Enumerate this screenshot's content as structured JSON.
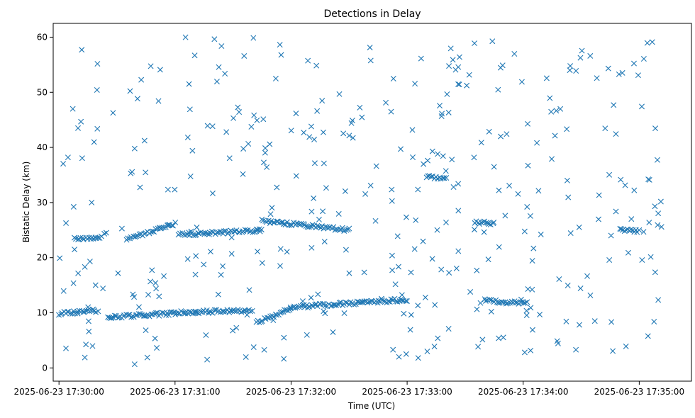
{
  "chart_data": {
    "type": "scatter",
    "title": "Detections in Delay",
    "xlabel": "Time (UTC)",
    "ylabel": "Bistatic Delay (km)",
    "marker": "x",
    "color": "#1f77b4",
    "grid": false,
    "x_unit": "UTC time",
    "xlim": [
      "2025-06-23 17:29:57",
      "2025-06-23 17:35:27"
    ],
    "ylim": [
      -2.4,
      62.5
    ],
    "x_ticks": [
      "2025-06-23 17:30:00",
      "2025-06-23 17:31:00",
      "2025-06-23 17:32:00",
      "2025-06-23 17:33:00",
      "2025-06-23 17:34:00",
      "2025-06-23 17:35:00"
    ],
    "y_ticks": [
      0,
      10,
      20,
      30,
      40,
      50,
      60
    ],
    "track_lower": {
      "segments": [
        {
          "x_start": "2025-06-23 17:30:00",
          "x_end": "2025-06-23 17:30:20",
          "y_start": 9.9,
          "y_end": 10.4
        },
        {
          "x_start": "2025-06-23 17:30:25",
          "x_end": "2025-06-23 17:31:00",
          "y_start": 9.2,
          "y_end": 9.9
        },
        {
          "x_start": "2025-06-23 17:31:00",
          "x_end": "2025-06-23 17:31:40",
          "y_start": 10.0,
          "y_end": 10.5
        },
        {
          "x_start": "2025-06-23 17:31:42",
          "x_end": "2025-06-23 17:32:00",
          "y_start": 8.2,
          "y_end": 10.8
        },
        {
          "x_start": "2025-06-23 17:32:00",
          "x_end": "2025-06-23 17:33:00",
          "y_start": 11.0,
          "y_end": 12.4
        },
        {
          "x_start": "2025-06-23 17:33:40",
          "x_end": "2025-06-23 17:34:02",
          "y_start": 12.2,
          "y_end": 11.7
        }
      ]
    },
    "track_upper": {
      "segments": [
        {
          "x_start": "2025-06-23 17:30:08",
          "x_end": "2025-06-23 17:30:22",
          "y_start": 23.5,
          "y_end": 23.6
        },
        {
          "x_start": "2025-06-23 17:30:35",
          "x_end": "2025-06-23 17:31:00",
          "y_start": 23.3,
          "y_end": 26.1
        },
        {
          "x_start": "2025-06-23 17:31:02",
          "x_end": "2025-06-23 17:31:45",
          "y_start": 24.2,
          "y_end": 25.0
        },
        {
          "x_start": "2025-06-23 17:31:45",
          "x_end": "2025-06-23 17:32:30",
          "y_start": 26.7,
          "y_end": 25.0
        },
        {
          "x_start": "2025-06-23 17:33:10",
          "x_end": "2025-06-23 17:33:20",
          "y_start": 34.6,
          "y_end": 34.6
        },
        {
          "x_start": "2025-06-23 17:33:35",
          "x_end": "2025-06-23 17:33:45",
          "y_start": 26.3,
          "y_end": 26.3
        },
        {
          "x_start": "2025-06-23 17:34:50",
          "x_end": "2025-06-23 17:35:00",
          "y_start": 25.1,
          "y_end": 24.9
        }
      ]
    },
    "noise": {
      "approximate_count": 380,
      "x_range": [
        "2025-06-23 17:30:00",
        "2025-06-23 17:35:12"
      ],
      "y_range": [
        0.5,
        60.0
      ]
    }
  }
}
